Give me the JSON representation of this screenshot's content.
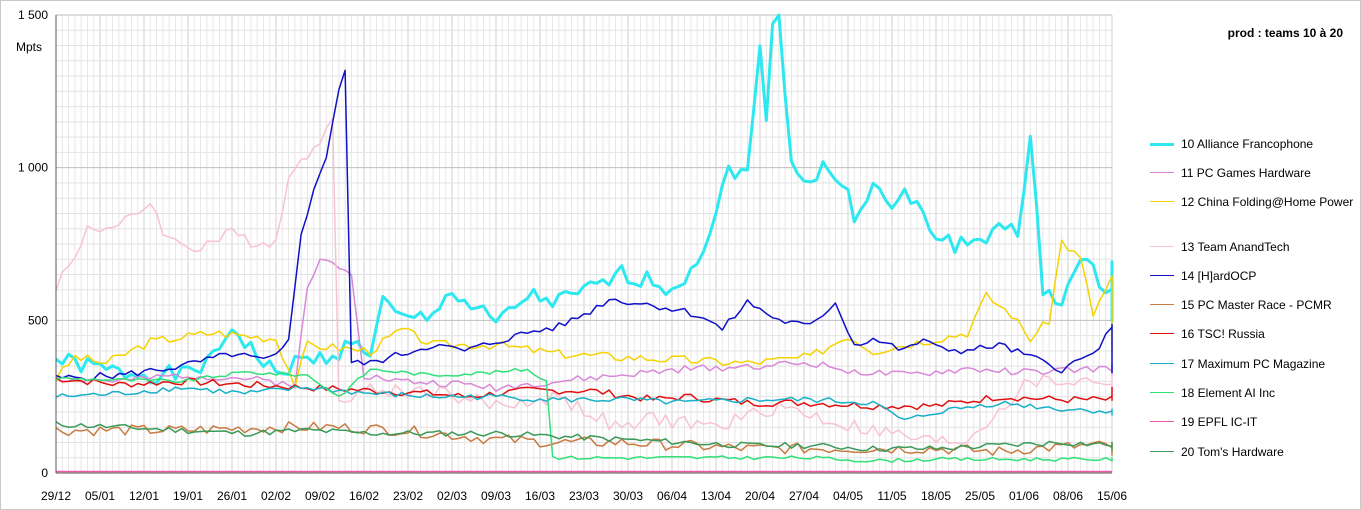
{
  "chart_data": {
    "type": "line",
    "title": "prod : teams 10 à 20",
    "ylabel": "Mpts",
    "ylim": [
      0,
      1500
    ],
    "yticks": [
      {
        "value": 0,
        "label": "0"
      },
      {
        "value": 500,
        "label": "500"
      },
      {
        "value": 1000,
        "label": "1 000"
      },
      {
        "value": 1500,
        "label": "1 500"
      }
    ],
    "x_start": "29/12",
    "x_days": 168,
    "xticks": [
      "29/12",
      "05/01",
      "12/01",
      "19/01",
      "26/01",
      "02/02",
      "09/02",
      "16/02",
      "23/02",
      "02/03",
      "09/03",
      "16/03",
      "23/03",
      "30/03",
      "06/04",
      "13/04",
      "20/04",
      "27/04",
      "04/05",
      "11/05",
      "18/05",
      "25/05",
      "01/06",
      "08/06",
      "15/06"
    ],
    "grid": true,
    "legend_position": "right",
    "series": [
      {
        "name": "10 Alliance Francophone",
        "color": "#2de8f0",
        "width": 3,
        "noise": 30,
        "seed": 1,
        "points": [
          [
            0,
            370
          ],
          [
            10,
            330
          ],
          [
            20,
            320
          ],
          [
            25,
            370
          ],
          [
            28,
            480
          ],
          [
            33,
            360
          ],
          [
            35,
            320
          ],
          [
            38,
            360
          ],
          [
            43,
            380
          ],
          [
            47,
            420
          ],
          [
            50,
            400
          ],
          [
            52,
            560
          ],
          [
            55,
            500
          ],
          [
            60,
            510
          ],
          [
            62,
            600
          ],
          [
            65,
            560
          ],
          [
            70,
            490
          ],
          [
            72,
            520
          ],
          [
            75,
            580
          ],
          [
            80,
            560
          ],
          [
            85,
            600
          ],
          [
            90,
            650
          ],
          [
            95,
            630
          ],
          [
            98,
            600
          ],
          [
            102,
            700
          ],
          [
            105,
            840
          ],
          [
            107,
            1000
          ],
          [
            110,
            980
          ],
          [
            112,
            1380
          ],
          [
            113,
            1180
          ],
          [
            114,
            1500
          ],
          [
            115,
            1500
          ],
          [
            117,
            1020
          ],
          [
            120,
            950
          ],
          [
            122,
            1000
          ],
          [
            125,
            950
          ],
          [
            127,
            850
          ],
          [
            130,
            940
          ],
          [
            133,
            860
          ],
          [
            135,
            920
          ],
          [
            140,
            780
          ],
          [
            143,
            750
          ],
          [
            148,
            760
          ],
          [
            150,
            840
          ],
          [
            153,
            760
          ],
          [
            155,
            1100
          ],
          [
            157,
            600
          ],
          [
            160,
            570
          ],
          [
            163,
            690
          ],
          [
            168,
            600
          ],
          [
            170,
            560
          ],
          [
            172,
            700
          ],
          [
            175,
            640
          ],
          [
            179,
            520
          ],
          [
            182,
            600
          ]
        ]
      },
      {
        "name": "11 PC Games Hardware",
        "color": "#d988d8",
        "width": 1.5,
        "noise": 12,
        "seed": 2,
        "points": [
          [
            0,
            310
          ],
          [
            10,
            300
          ],
          [
            20,
            320
          ],
          [
            30,
            310
          ],
          [
            38,
            290
          ],
          [
            40,
            600
          ],
          [
            42,
            700
          ],
          [
            45,
            680
          ],
          [
            47,
            660
          ],
          [
            49,
            320
          ],
          [
            55,
            300
          ],
          [
            65,
            290
          ],
          [
            70,
            280
          ],
          [
            80,
            300
          ],
          [
            90,
            320
          ],
          [
            100,
            340
          ],
          [
            110,
            350
          ],
          [
            120,
            360
          ],
          [
            128,
            330
          ],
          [
            135,
            320
          ],
          [
            145,
            340
          ],
          [
            155,
            330
          ],
          [
            165,
            340
          ],
          [
            175,
            350
          ],
          [
            182,
            330
          ]
        ]
      },
      {
        "name": "12 China Folding@Home Power",
        "color": "#f5d200",
        "width": 1.5,
        "noise": 15,
        "seed": 3,
        "points": [
          [
            0,
            310
          ],
          [
            3,
            380
          ],
          [
            8,
            360
          ],
          [
            15,
            430
          ],
          [
            25,
            460
          ],
          [
            35,
            440
          ],
          [
            38,
            290
          ],
          [
            40,
            420
          ],
          [
            50,
            400
          ],
          [
            55,
            470
          ],
          [
            60,
            420
          ],
          [
            70,
            420
          ],
          [
            80,
            390
          ],
          [
            90,
            380
          ],
          [
            100,
            370
          ],
          [
            110,
            360
          ],
          [
            120,
            380
          ],
          [
            126,
            450
          ],
          [
            130,
            400
          ],
          [
            135,
            420
          ],
          [
            145,
            460
          ],
          [
            148,
            580
          ],
          [
            152,
            520
          ],
          [
            155,
            440
          ],
          [
            158,
            500
          ],
          [
            160,
            760
          ],
          [
            163,
            700
          ],
          [
            165,
            520
          ],
          [
            168,
            640
          ],
          [
            172,
            600
          ],
          [
            175,
            460
          ],
          [
            179,
            380
          ],
          [
            182,
            480
          ]
        ]
      },
      {
        "name": "13 Team AnandTech",
        "color": "#f8c3d0",
        "width": 1.5,
        "noise": 25,
        "seed": 4,
        "points": [
          [
            0,
            620
          ],
          [
            3,
            700
          ],
          [
            5,
            810
          ],
          [
            10,
            800
          ],
          [
            15,
            890
          ],
          [
            18,
            760
          ],
          [
            22,
            740
          ],
          [
            28,
            780
          ],
          [
            32,
            760
          ],
          [
            35,
            760
          ],
          [
            37,
            960
          ],
          [
            39,
            1050
          ],
          [
            42,
            1060
          ],
          [
            44,
            1180
          ],
          [
            45,
            250
          ],
          [
            50,
            270
          ],
          [
            60,
            270
          ],
          [
            70,
            220
          ],
          [
            80,
            250
          ],
          [
            90,
            140
          ],
          [
            95,
            180
          ],
          [
            105,
            150
          ],
          [
            115,
            220
          ],
          [
            125,
            160
          ],
          [
            135,
            120
          ],
          [
            140,
            100
          ],
          [
            145,
            110
          ],
          [
            155,
            300
          ],
          [
            165,
            300
          ],
          [
            175,
            310
          ],
          [
            182,
            250
          ]
        ]
      },
      {
        "name": "14 [H]ardOCP",
        "color": "#1010c8",
        "width": 1.5,
        "noise": 12,
        "seed": 5,
        "points": [
          [
            0,
            310
          ],
          [
            10,
            320
          ],
          [
            20,
            350
          ],
          [
            28,
            390
          ],
          [
            33,
            370
          ],
          [
            35,
            380
          ],
          [
            37,
            430
          ],
          [
            39,
            790
          ],
          [
            41,
            920
          ],
          [
            43,
            1040
          ],
          [
            45,
            1260
          ],
          [
            46,
            1320
          ],
          [
            47,
            360
          ],
          [
            50,
            360
          ],
          [
            55,
            390
          ],
          [
            60,
            420
          ],
          [
            65,
            400
          ],
          [
            70,
            430
          ],
          [
            75,
            460
          ],
          [
            80,
            480
          ],
          [
            85,
            530
          ],
          [
            88,
            570
          ],
          [
            95,
            550
          ],
          [
            100,
            530
          ],
          [
            103,
            510
          ],
          [
            106,
            470
          ],
          [
            110,
            560
          ],
          [
            115,
            500
          ],
          [
            120,
            480
          ],
          [
            124,
            560
          ],
          [
            127,
            420
          ],
          [
            130,
            440
          ],
          [
            135,
            400
          ],
          [
            138,
            440
          ],
          [
            140,
            410
          ],
          [
            145,
            400
          ],
          [
            150,
            420
          ],
          [
            155,
            380
          ],
          [
            160,
            340
          ],
          [
            165,
            390
          ],
          [
            168,
            470
          ],
          [
            172,
            480
          ],
          [
            175,
            440
          ],
          [
            180,
            380
          ],
          [
            182,
            320
          ]
        ]
      },
      {
        "name": "15 PC Master Race - PCMR",
        "color": "#c87a40",
        "width": 1.5,
        "noise": 18,
        "seed": 6,
        "points": [
          [
            0,
            140
          ],
          [
            20,
            140
          ],
          [
            35,
            150
          ],
          [
            45,
            150
          ],
          [
            55,
            140
          ],
          [
            65,
            120
          ],
          [
            70,
            110
          ],
          [
            80,
            100
          ],
          [
            90,
            100
          ],
          [
            100,
            90
          ],
          [
            110,
            80
          ],
          [
            120,
            80
          ],
          [
            130,
            80
          ],
          [
            140,
            80
          ],
          [
            150,
            70
          ],
          [
            155,
            80
          ],
          [
            165,
            90
          ],
          [
            175,
            80
          ],
          [
            182,
            70
          ]
        ]
      },
      {
        "name": "16 TSC! Russia",
        "color": "#e01010",
        "width": 1.5,
        "noise": 12,
        "seed": 7,
        "points": [
          [
            0,
            310
          ],
          [
            10,
            290
          ],
          [
            20,
            300
          ],
          [
            30,
            290
          ],
          [
            40,
            280
          ],
          [
            50,
            270
          ],
          [
            60,
            260
          ],
          [
            65,
            250
          ],
          [
            75,
            270
          ],
          [
            85,
            270
          ],
          [
            95,
            240
          ],
          [
            100,
            250
          ],
          [
            110,
            230
          ],
          [
            120,
            230
          ],
          [
            130,
            220
          ],
          [
            140,
            220
          ],
          [
            150,
            250
          ],
          [
            160,
            240
          ],
          [
            170,
            240
          ],
          [
            175,
            260
          ],
          [
            182,
            270
          ]
        ]
      },
      {
        "name": "17 Maximum PC Magazine",
        "color": "#18b0c8",
        "width": 1.5,
        "noise": 10,
        "seed": 8,
        "points": [
          [
            0,
            250
          ],
          [
            10,
            260
          ],
          [
            20,
            280
          ],
          [
            30,
            260
          ],
          [
            40,
            280
          ],
          [
            50,
            260
          ],
          [
            60,
            250
          ],
          [
            70,
            250
          ],
          [
            80,
            240
          ],
          [
            90,
            240
          ],
          [
            100,
            230
          ],
          [
            110,
            240
          ],
          [
            120,
            240
          ],
          [
            130,
            230
          ],
          [
            135,
            170
          ],
          [
            140,
            200
          ],
          [
            150,
            230
          ],
          [
            160,
            210
          ],
          [
            170,
            200
          ],
          [
            182,
            200
          ]
        ]
      },
      {
        "name": "18 Element AI Inc",
        "color": "#30e078",
        "width": 1.5,
        "noise": 6,
        "seed": 9,
        "points": [
          [
            0,
            310
          ],
          [
            20,
            300
          ],
          [
            30,
            330
          ],
          [
            40,
            320
          ],
          [
            45,
            250
          ],
          [
            50,
            340
          ],
          [
            60,
            320
          ],
          [
            70,
            330
          ],
          [
            75,
            340
          ],
          [
            78,
            300
          ],
          [
            79,
            60
          ],
          [
            80,
            50
          ],
          [
            100,
            50
          ],
          [
            120,
            50
          ],
          [
            130,
            40
          ],
          [
            140,
            45
          ],
          [
            160,
            45
          ],
          [
            182,
            45
          ]
        ]
      },
      {
        "name": "19 EPFL IC-IT",
        "color": "#f058a8",
        "width": 1.5,
        "noise": 0,
        "seed": 10,
        "points": [
          [
            0,
            5
          ],
          [
            182,
            5
          ]
        ]
      },
      {
        "name": "20 Tom's Hardware",
        "color": "#3a9a58",
        "width": 1.5,
        "noise": 10,
        "seed": 11,
        "points": [
          [
            0,
            160
          ],
          [
            20,
            140
          ],
          [
            30,
            130
          ],
          [
            40,
            140
          ],
          [
            50,
            130
          ],
          [
            60,
            130
          ],
          [
            70,
            130
          ],
          [
            80,
            120
          ],
          [
            90,
            110
          ],
          [
            100,
            100
          ],
          [
            110,
            90
          ],
          [
            120,
            90
          ],
          [
            130,
            80
          ],
          [
            140,
            80
          ],
          [
            150,
            90
          ],
          [
            160,
            100
          ],
          [
            170,
            90
          ],
          [
            182,
            80
          ]
        ]
      }
    ]
  }
}
